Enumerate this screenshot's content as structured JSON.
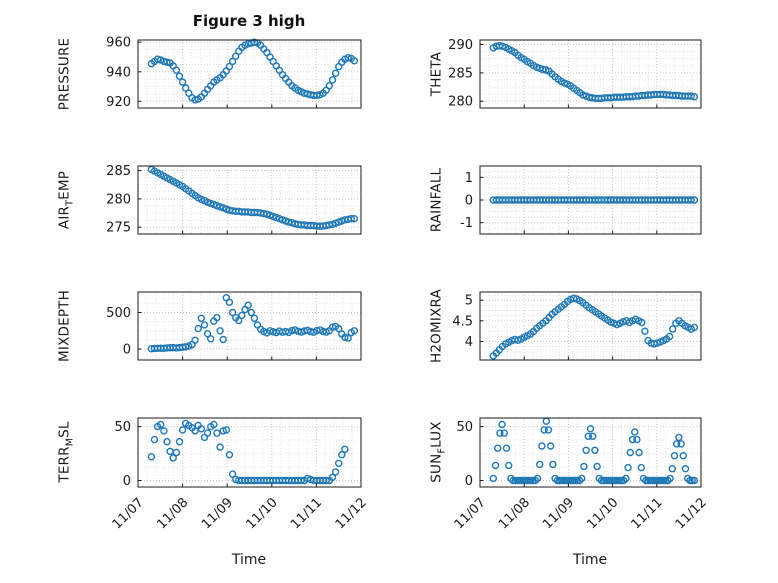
{
  "figure": {
    "title": "Figure 3 high",
    "xlabel": "Time",
    "marker_color": "#1f77b4",
    "xtick_labels": [
      "11/07",
      "11/08",
      "11/09",
      "11/10",
      "11/11",
      "11/12"
    ]
  },
  "chart_data": [
    {
      "type": "scatter",
      "name": "pressure",
      "ylabel": {
        "pre": "PRESSURE",
        "sub": "",
        "post": ""
      },
      "xlim": [
        7,
        12
      ],
      "ylim": [
        915.5,
        961.5
      ],
      "xticks": [
        7,
        8,
        9,
        10,
        11,
        12
      ],
      "yticks": [
        920,
        940,
        960
      ],
      "x": [
        7.3,
        7.37,
        7.44,
        7.51,
        7.58,
        7.65,
        7.72,
        7.79,
        7.86,
        7.93,
        8,
        8.07,
        8.14,
        8.21,
        8.28,
        8.35,
        8.42,
        8.49,
        8.56,
        8.63,
        8.7,
        8.77,
        8.84,
        8.91,
        8.98,
        9.05,
        9.12,
        9.19,
        9.26,
        9.33,
        9.4,
        9.47,
        9.54,
        9.61,
        9.68,
        9.75,
        9.82,
        9.89,
        9.96,
        10.03,
        10.1,
        10.17,
        10.24,
        10.31,
        10.38,
        10.45,
        10.52,
        10.59,
        10.66,
        10.73,
        10.8,
        10.87,
        10.94,
        11.01,
        11.08,
        11.15,
        11.22,
        11.29,
        11.36,
        11.43,
        11.5,
        11.57,
        11.64,
        11.71,
        11.78,
        11.85
      ],
      "y": [
        945.5,
        947,
        948.5,
        948,
        947,
        946.5,
        946,
        944,
        941,
        937,
        933,
        929,
        925.5,
        922.5,
        921,
        921.5,
        923,
        925.5,
        928,
        930.5,
        933,
        934.5,
        936,
        938,
        940.5,
        943.5,
        947,
        950.5,
        954,
        956.5,
        958,
        959,
        959.5,
        960,
        959.5,
        958,
        955.5,
        953,
        950,
        947,
        944,
        941,
        938,
        935.5,
        933,
        930.5,
        929,
        927.5,
        926.5,
        925.5,
        925,
        924.5,
        924,
        924,
        924.5,
        925.5,
        927.5,
        930.5,
        934.5,
        939,
        943.5,
        946.5,
        948.5,
        949.5,
        949,
        947.5
      ]
    },
    {
      "type": "scatter",
      "name": "theta",
      "ylabel": {
        "pre": "THETA",
        "sub": "",
        "post": ""
      },
      "xlim": [
        7,
        12
      ],
      "ylim": [
        278.8,
        290.8
      ],
      "xticks": [
        7,
        8,
        9,
        10,
        11,
        12
      ],
      "yticks": [
        280,
        285,
        290
      ],
      "x": [
        7.3,
        7.37,
        7.44,
        7.51,
        7.58,
        7.65,
        7.72,
        7.79,
        7.86,
        7.93,
        8,
        8.07,
        8.14,
        8.21,
        8.28,
        8.35,
        8.42,
        8.49,
        8.56,
        8.63,
        8.7,
        8.77,
        8.84,
        8.91,
        8.98,
        9.05,
        9.12,
        9.19,
        9.26,
        9.33,
        9.4,
        9.47,
        9.54,
        9.61,
        9.68,
        9.75,
        9.82,
        9.89,
        9.96,
        10.03,
        10.1,
        10.17,
        10.24,
        10.31,
        10.38,
        10.45,
        10.52,
        10.59,
        10.66,
        10.73,
        10.8,
        10.87,
        10.94,
        11.01,
        11.08,
        11.15,
        11.22,
        11.29,
        11.36,
        11.43,
        11.5,
        11.57,
        11.64,
        11.71,
        11.78,
        11.85
      ],
      "y": [
        289.4,
        289.7,
        289.8,
        289.7,
        289.5,
        289.2,
        288.9,
        288.6,
        288.1,
        287.7,
        287.4,
        287,
        286.7,
        286.3,
        286,
        285.8,
        285.6,
        285.5,
        285.3,
        284.8,
        284.3,
        283.9,
        283.5,
        283.2,
        283,
        282.7,
        282.3,
        281.9,
        281.5,
        281.1,
        280.9,
        280.7,
        280.6,
        280.5,
        280.5,
        280.5,
        280.6,
        280.6,
        280.6,
        280.7,
        280.7,
        280.7,
        280.7,
        280.8,
        280.8,
        280.8,
        280.9,
        280.9,
        281,
        281,
        281.1,
        281.1,
        281.2,
        281.2,
        281.2,
        281.2,
        281.1,
        281.1,
        281,
        281,
        281,
        280.9,
        280.9,
        280.9,
        280.9,
        280.8
      ]
    },
    {
      "type": "scatter",
      "name": "airtemp",
      "ylabel": {
        "pre": "AIR",
        "sub": "T",
        "post": "EMP"
      },
      "xlim": [
        7,
        12
      ],
      "ylim": [
        273.8,
        285.8
      ],
      "xticks": [
        7,
        8,
        9,
        10,
        11,
        12
      ],
      "yticks": [
        275,
        280,
        285
      ],
      "x": [
        7.3,
        7.37,
        7.44,
        7.51,
        7.58,
        7.65,
        7.72,
        7.79,
        7.86,
        7.93,
        8,
        8.07,
        8.14,
        8.21,
        8.28,
        8.35,
        8.42,
        8.49,
        8.56,
        8.63,
        8.7,
        8.77,
        8.84,
        8.91,
        8.98,
        9.05,
        9.12,
        9.19,
        9.26,
        9.33,
        9.4,
        9.47,
        9.54,
        9.61,
        9.68,
        9.75,
        9.82,
        9.89,
        9.96,
        10.03,
        10.1,
        10.17,
        10.24,
        10.31,
        10.38,
        10.45,
        10.52,
        10.59,
        10.66,
        10.73,
        10.8,
        10.87,
        10.94,
        11.01,
        11.08,
        11.15,
        11.22,
        11.29,
        11.36,
        11.43,
        11.5,
        11.57,
        11.64,
        11.71,
        11.78,
        11.85
      ],
      "y": [
        285.2,
        284.9,
        284.6,
        284.3,
        284,
        283.7,
        283.4,
        283.1,
        282.8,
        282.5,
        282.2,
        281.8,
        281.4,
        281,
        280.6,
        280.2,
        279.9,
        279.7,
        279.4,
        279.2,
        279,
        278.8,
        278.6,
        278.4,
        278.2,
        278,
        277.9,
        277.8,
        277.8,
        277.7,
        277.7,
        277.7,
        277.6,
        277.6,
        277.6,
        277.5,
        277.4,
        277.3,
        277.1,
        276.9,
        276.7,
        276.5,
        276.3,
        276.1,
        275.9,
        275.8,
        275.6,
        275.5,
        275.4,
        275.4,
        275.3,
        275.3,
        275.3,
        275.2,
        275.2,
        275.2,
        275.3,
        275.4,
        275.5,
        275.7,
        275.9,
        276.1,
        276.3,
        276.4,
        276.5,
        276.5
      ]
    },
    {
      "type": "scatter",
      "name": "rainfall",
      "ylabel": {
        "pre": "RAINFALL",
        "sub": "",
        "post": ""
      },
      "xlim": [
        7,
        12
      ],
      "ylim": [
        -1.5,
        1.5
      ],
      "xticks": [
        7,
        8,
        9,
        10,
        11,
        12
      ],
      "yticks": [
        -1,
        0,
        1
      ],
      "x": [
        7.3,
        7.37,
        7.44,
        7.51,
        7.58,
        7.65,
        7.72,
        7.79,
        7.86,
        7.93,
        8,
        8.07,
        8.14,
        8.21,
        8.28,
        8.35,
        8.42,
        8.49,
        8.56,
        8.63,
        8.7,
        8.77,
        8.84,
        8.91,
        8.98,
        9.05,
        9.12,
        9.19,
        9.26,
        9.33,
        9.4,
        9.47,
        9.54,
        9.61,
        9.68,
        9.75,
        9.82,
        9.89,
        9.96,
        10.03,
        10.1,
        10.17,
        10.24,
        10.31,
        10.38,
        10.45,
        10.52,
        10.59,
        10.66,
        10.73,
        10.8,
        10.87,
        10.94,
        11.01,
        11.08,
        11.15,
        11.22,
        11.29,
        11.36,
        11.43,
        11.5,
        11.57,
        11.64,
        11.71,
        11.78,
        11.85
      ],
      "y": [
        0,
        0,
        0,
        0,
        0,
        0,
        0,
        0,
        0,
        0,
        0,
        0,
        0,
        0,
        0,
        0,
        0,
        0,
        0,
        0,
        0,
        0,
        0,
        0,
        0,
        0,
        0,
        0,
        0,
        0,
        0,
        0,
        0,
        0,
        0,
        0,
        0,
        0,
        0,
        0,
        0,
        0,
        0,
        0,
        0,
        0,
        0,
        0,
        0,
        0,
        0,
        0,
        0,
        0,
        0,
        0,
        0,
        0,
        0,
        0,
        0,
        0,
        0,
        0,
        0,
        0
      ]
    },
    {
      "type": "scatter",
      "name": "mixdepth",
      "ylabel": {
        "pre": "MIXDEPTH",
        "sub": "",
        "post": ""
      },
      "xlim": [
        7,
        12
      ],
      "ylim": [
        -150,
        780
      ],
      "xticks": [
        7,
        8,
        9,
        10,
        11,
        12
      ],
      "yticks": [
        0,
        500
      ],
      "x": [
        7.3,
        7.37,
        7.44,
        7.51,
        7.58,
        7.65,
        7.72,
        7.79,
        7.86,
        7.93,
        8,
        8.07,
        8.14,
        8.21,
        8.28,
        8.35,
        8.42,
        8.49,
        8.56,
        8.63,
        8.7,
        8.77,
        8.84,
        8.91,
        8.98,
        9.05,
        9.12,
        9.19,
        9.26,
        9.33,
        9.4,
        9.47,
        9.54,
        9.61,
        9.68,
        9.75,
        9.82,
        9.89,
        9.96,
        10.03,
        10.1,
        10.17,
        10.24,
        10.31,
        10.38,
        10.45,
        10.52,
        10.59,
        10.66,
        10.73,
        10.8,
        10.87,
        10.94,
        11.01,
        11.08,
        11.15,
        11.22,
        11.29,
        11.36,
        11.43,
        11.5,
        11.57,
        11.64,
        11.71,
        11.78,
        11.85
      ],
      "y": [
        5,
        8,
        10,
        12,
        10,
        15,
        18,
        20,
        15,
        20,
        25,
        30,
        40,
        60,
        120,
        280,
        420,
        330,
        210,
        140,
        380,
        430,
        250,
        130,
        700,
        640,
        500,
        430,
        390,
        460,
        540,
        600,
        500,
        420,
        330,
        270,
        240,
        220,
        250,
        235,
        225,
        245,
        230,
        240,
        228,
        252,
        262,
        242,
        232,
        246,
        256,
        238,
        230,
        252,
        262,
        240,
        232,
        250,
        298,
        310,
        280,
        205,
        160,
        150,
        225,
        250
      ]
    },
    {
      "type": "scatter",
      "name": "h2omixra",
      "ylabel": {
        "pre": "H2OMIXRA",
        "sub": "",
        "post": ""
      },
      "xlim": [
        7,
        12
      ],
      "ylim": [
        3.55,
        5.2
      ],
      "xticks": [
        7,
        8,
        9,
        10,
        11,
        12
      ],
      "yticks": [
        4,
        4.5,
        5
      ],
      "x": [
        7.3,
        7.37,
        7.44,
        7.51,
        7.58,
        7.65,
        7.72,
        7.79,
        7.86,
        7.93,
        8,
        8.07,
        8.14,
        8.21,
        8.28,
        8.35,
        8.42,
        8.49,
        8.56,
        8.63,
        8.7,
        8.77,
        8.84,
        8.91,
        8.98,
        9.05,
        9.12,
        9.19,
        9.26,
        9.33,
        9.4,
        9.47,
        9.54,
        9.61,
        9.68,
        9.75,
        9.82,
        9.89,
        9.96,
        10.03,
        10.1,
        10.17,
        10.24,
        10.31,
        10.38,
        10.45,
        10.52,
        10.59,
        10.66,
        10.73,
        10.8,
        10.87,
        10.94,
        11.01,
        11.08,
        11.15,
        11.22,
        11.29,
        11.36,
        11.43,
        11.5,
        11.57,
        11.64,
        11.71,
        11.78,
        11.85
      ],
      "y": [
        3.65,
        3.72,
        3.8,
        3.88,
        3.94,
        3.98,
        4.02,
        4.05,
        4.03,
        4.06,
        4.1,
        4.14,
        4.18,
        4.24,
        4.32,
        4.38,
        4.44,
        4.5,
        4.58,
        4.66,
        4.72,
        4.78,
        4.84,
        4.9,
        4.97,
        5.02,
        5.05,
        5.03,
        4.99,
        4.94,
        4.88,
        4.82,
        4.77,
        4.72,
        4.67,
        4.62,
        4.57,
        4.52,
        4.47,
        4.44,
        4.41,
        4.44,
        4.48,
        4.5,
        4.46,
        4.5,
        4.54,
        4.5,
        4.46,
        4.25,
        4.02,
        3.96,
        3.94,
        3.96,
        3.99,
        4.02,
        4.06,
        4.12,
        4.3,
        4.44,
        4.5,
        4.44,
        4.38,
        4.34,
        4.3,
        4.34
      ]
    },
    {
      "type": "scatter",
      "name": "terrmsl",
      "ylabel": {
        "pre": "TERR",
        "sub": "M",
        "post": "SL"
      },
      "xlim": [
        7,
        12
      ],
      "ylim": [
        -6,
        58
      ],
      "xticks": [
        7,
        8,
        9,
        10,
        11,
        12
      ],
      "yticks": [
        0,
        50
      ],
      "x": [
        7.3,
        7.37,
        7.44,
        7.51,
        7.58,
        7.65,
        7.72,
        7.79,
        7.86,
        7.93,
        8,
        8.07,
        8.14,
        8.21,
        8.28,
        8.35,
        8.42,
        8.49,
        8.56,
        8.63,
        8.7,
        8.77,
        8.84,
        8.91,
        8.98,
        9.05,
        9.12,
        9.19,
        9.26,
        9.33,
        9.4,
        9.47,
        9.54,
        9.61,
        9.68,
        9.75,
        9.82,
        9.89,
        9.96,
        10.03,
        10.1,
        10.17,
        10.24,
        10.31,
        10.38,
        10.45,
        10.52,
        10.59,
        10.66,
        10.73,
        10.8,
        10.87,
        10.94,
        11.01,
        11.08,
        11.15,
        11.22,
        11.29,
        11.36,
        11.43,
        11.5,
        11.57,
        11.64
      ],
      "y": [
        22,
        38,
        50,
        52,
        46,
        36,
        27,
        21,
        26,
        36,
        47,
        53,
        51,
        49,
        46,
        51,
        48,
        40,
        44,
        50,
        52,
        44,
        31,
        46,
        47,
        24,
        6,
        1,
        0,
        0,
        0,
        0,
        0,
        0,
        0,
        0,
        0,
        0,
        0,
        0,
        0,
        0,
        0,
        0,
        0,
        0,
        0,
        0,
        0,
        0,
        2,
        1,
        0,
        0,
        0,
        0,
        0,
        0,
        3,
        8,
        16,
        24,
        29
      ]
    },
    {
      "type": "scatter",
      "name": "sunflux",
      "ylabel": {
        "pre": "SUN",
        "sub": "F",
        "post": "LUX"
      },
      "xlim": [
        7,
        12
      ],
      "ylim": [
        -6,
        58
      ],
      "xticks": [
        7,
        8,
        9,
        10,
        11,
        12
      ],
      "yticks": [
        0,
        50
      ],
      "x": [
        7.3,
        7.35,
        7.4,
        7.45,
        7.5,
        7.55,
        7.6,
        7.65,
        7.7,
        7.75,
        7.8,
        7.85,
        7.9,
        7.95,
        8,
        8.05,
        8.1,
        8.15,
        8.2,
        8.25,
        8.3,
        8.35,
        8.4,
        8.45,
        8.5,
        8.55,
        8.6,
        8.65,
        8.7,
        8.75,
        8.8,
        8.85,
        8.9,
        8.95,
        9,
        9.05,
        9.1,
        9.15,
        9.2,
        9.25,
        9.3,
        9.35,
        9.4,
        9.45,
        9.5,
        9.55,
        9.6,
        9.65,
        9.7,
        9.75,
        9.8,
        9.85,
        9.9,
        9.95,
        10,
        10.05,
        10.1,
        10.15,
        10.2,
        10.25,
        10.3,
        10.35,
        10.4,
        10.45,
        10.5,
        10.55,
        10.6,
        10.65,
        10.7,
        10.75,
        10.8,
        10.85,
        10.9,
        10.95,
        11,
        11.05,
        11.1,
        11.15,
        11.2,
        11.25,
        11.3,
        11.35,
        11.4,
        11.45,
        11.5,
        11.55,
        11.6,
        11.65,
        11.7,
        11.75,
        11.8,
        11.85
      ],
      "y": [
        2,
        14,
        30,
        44,
        52,
        44,
        30,
        14,
        2,
        0,
        0,
        0,
        0,
        0,
        0,
        0,
        0,
        0,
        0,
        0,
        2,
        15,
        32,
        47,
        55,
        47,
        32,
        15,
        2,
        0,
        0,
        0,
        0,
        0,
        0,
        0,
        0,
        0,
        0,
        0,
        2,
        13,
        28,
        41,
        48,
        41,
        28,
        13,
        2,
        0,
        0,
        0,
        0,
        0,
        0,
        0,
        0,
        0,
        0,
        0,
        2,
        12,
        26,
        38,
        45,
        38,
        26,
        12,
        2,
        0,
        0,
        0,
        0,
        0,
        0,
        0,
        0,
        0,
        0,
        0,
        2,
        11,
        23,
        34,
        40,
        34,
        23,
        11,
        2,
        0,
        0,
        0
      ]
    }
  ]
}
